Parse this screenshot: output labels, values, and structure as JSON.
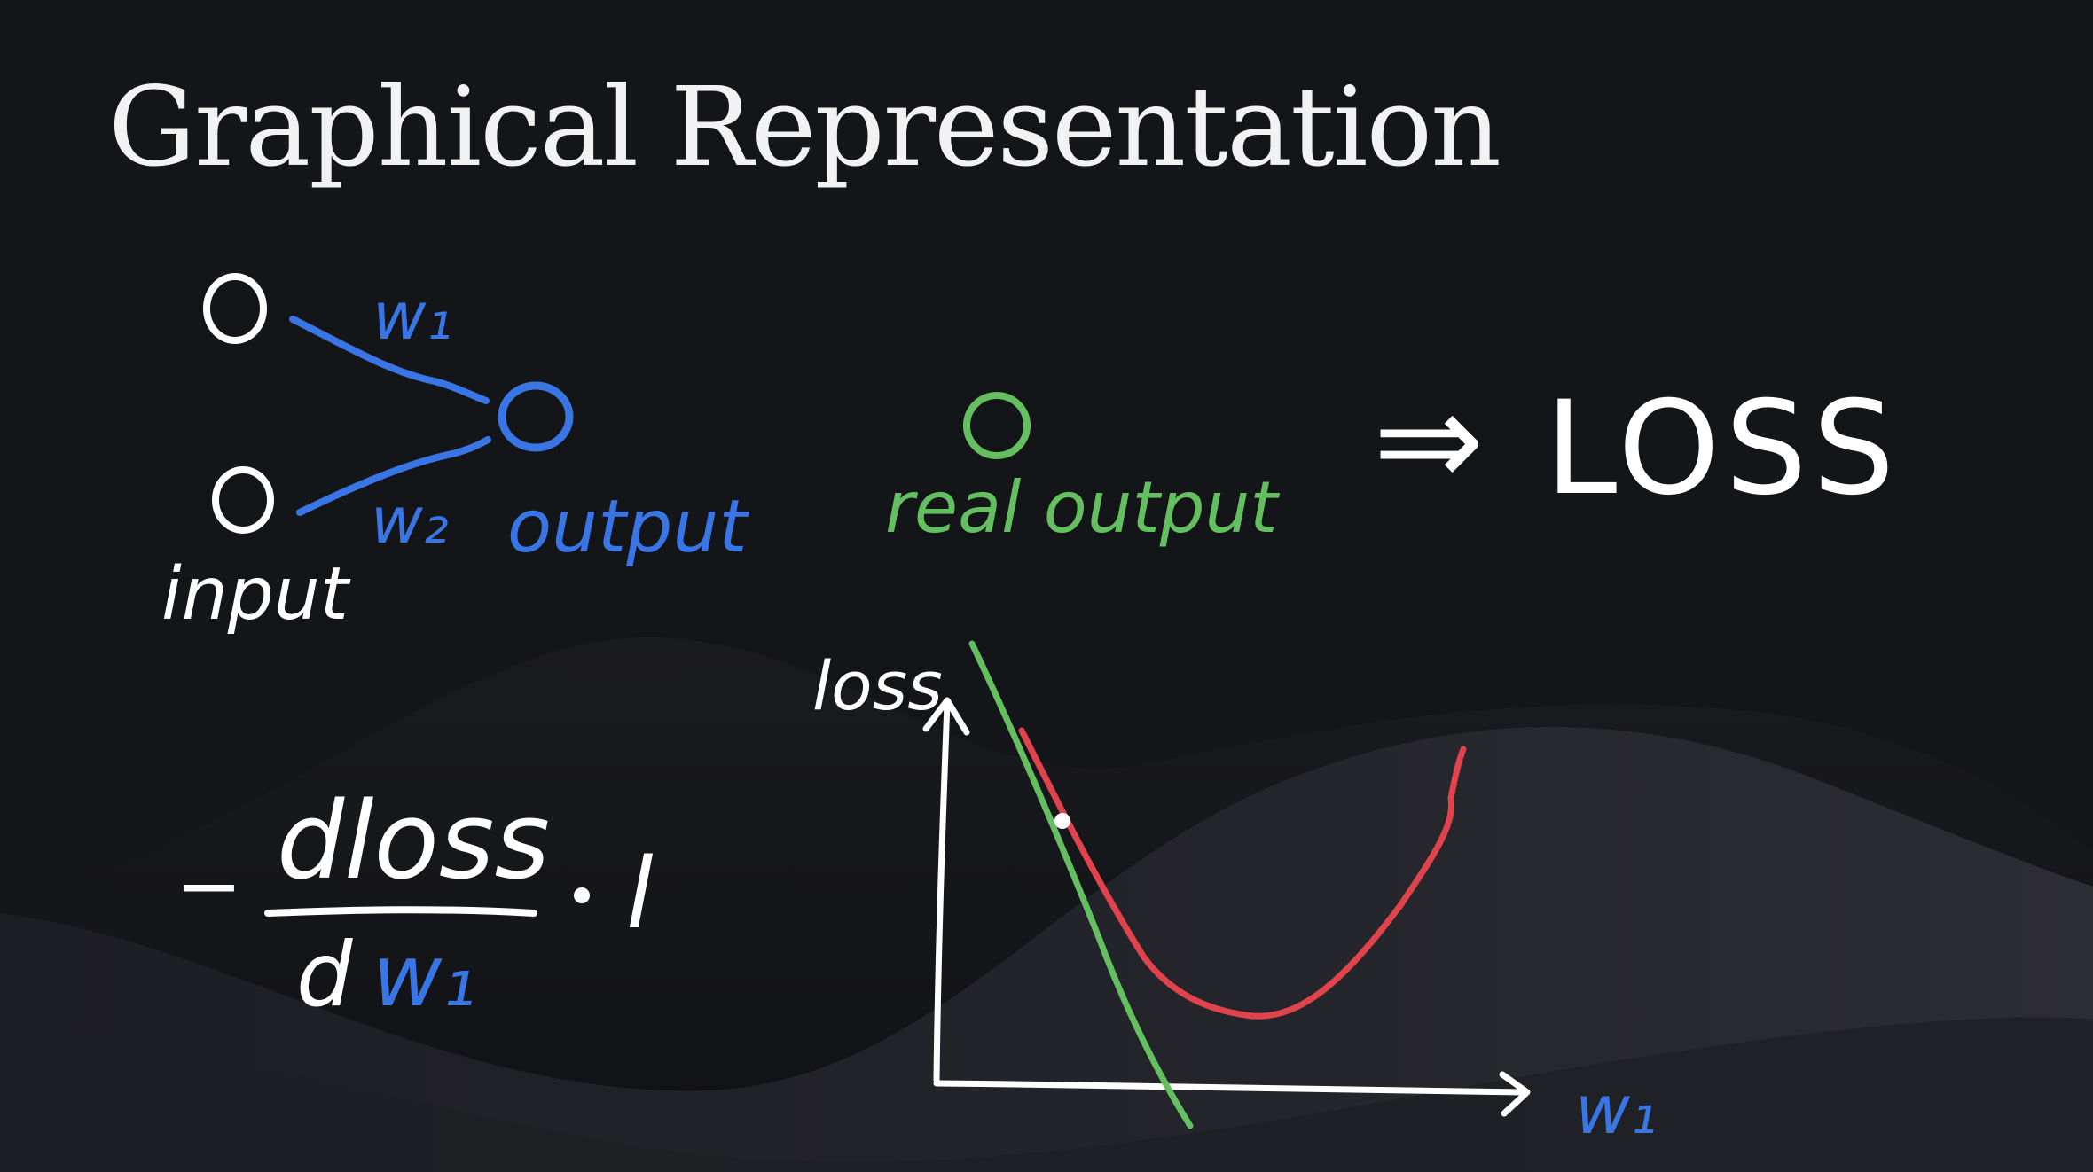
{
  "slide": {
    "title": "Graphical Representation"
  },
  "colors": {
    "background": "#141518",
    "wave_dark": "#1e1f24",
    "wave_light": "#2b2c32",
    "white_ink": "#ffffff",
    "blue_ink": "#3a75e6",
    "green_ink": "#63bf5f",
    "red_ink": "#e0434b"
  },
  "network": {
    "input_label": "input",
    "weight_1": "w₁",
    "weight_2": "w₂",
    "output_label": "output"
  },
  "target": {
    "label": "real output",
    "arrow": "⇒",
    "result": "LOSS"
  },
  "gradient_step": {
    "sign": "−",
    "numerator": "dloss",
    "denominator_d": "d",
    "denominator_w": "w₁",
    "multiply": "·",
    "factor": "l"
  },
  "loss_plot": {
    "y_label": "loss",
    "x_label": "w₁",
    "curve_color": "#e0434b",
    "tangent_color": "#63bf5f"
  }
}
